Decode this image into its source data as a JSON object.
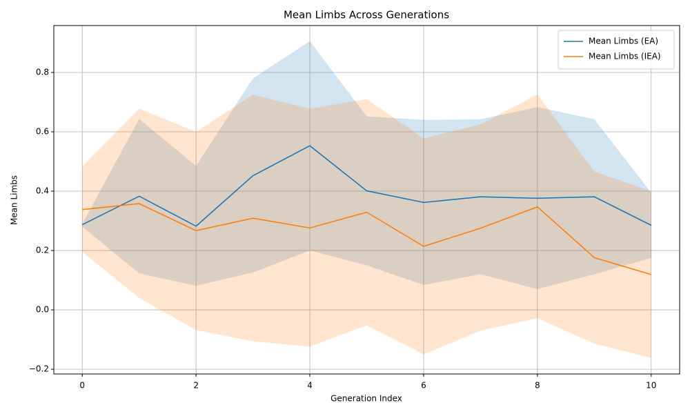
{
  "chart_data": {
    "type": "line",
    "title": "Mean Limbs Across Generations",
    "x_label": "Generation Index",
    "y_label": "Mean Limbs",
    "x": [
      0,
      1,
      2,
      3,
      4,
      5,
      6,
      7,
      8,
      9,
      10
    ],
    "series": [
      {
        "name": "Mean Limbs (EA)",
        "color": "#1f77b4",
        "values": [
          0.287,
          0.383,
          0.282,
          0.452,
          0.553,
          0.401,
          0.362,
          0.381,
          0.376,
          0.381,
          0.285
        ],
        "upper": [
          0.29,
          0.643,
          0.485,
          0.78,
          0.905,
          0.652,
          0.64,
          0.642,
          0.683,
          0.642,
          0.395
        ],
        "lower": [
          0.28,
          0.123,
          0.081,
          0.126,
          0.2,
          0.15,
          0.084,
          0.12,
          0.07,
          0.12,
          0.175
        ]
      },
      {
        "name": "Mean Limbs (IEA)",
        "color": "#ff7f0e",
        "values": [
          0.338,
          0.358,
          0.267,
          0.309,
          0.276,
          0.329,
          0.214,
          0.275,
          0.347,
          0.176,
          0.119
        ],
        "upper": [
          0.483,
          0.678,
          0.6,
          0.725,
          0.678,
          0.71,
          0.578,
          0.625,
          0.726,
          0.466,
          0.4
        ],
        "lower": [
          0.195,
          0.04,
          -0.068,
          -0.106,
          -0.124,
          -0.052,
          -0.15,
          -0.07,
          -0.028,
          -0.114,
          -0.162
        ]
      }
    ],
    "xlim": [
      -0.5,
      10.5
    ],
    "ylim": [
      -0.216,
      0.958
    ],
    "xticks": [
      0,
      2,
      4,
      6,
      8,
      10
    ],
    "yticks": [
      {
        "value": -0.2,
        "label": "−0.2"
      },
      {
        "value": 0,
        "label": "0.0"
      },
      0.2,
      0.4,
      0.6,
      0.8
    ],
    "grid": true,
    "legend": "upper-right"
  }
}
